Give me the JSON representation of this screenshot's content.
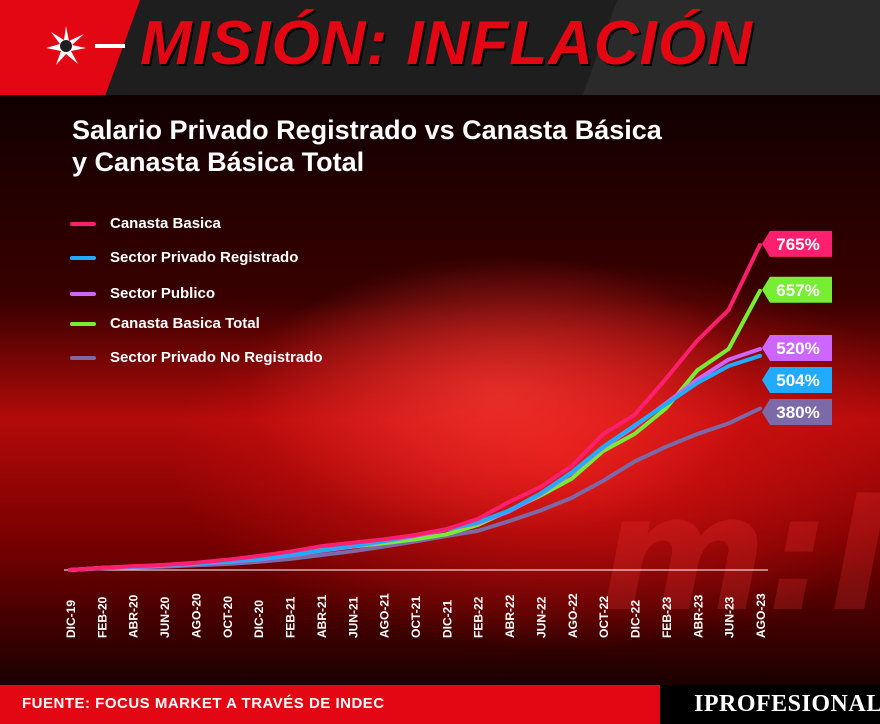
{
  "header": {
    "title": "MISIÓN: INFLACIÓN"
  },
  "chart_data": {
    "type": "line",
    "title": "Salario Privado Registrado vs Canasta Básica y Canasta Básica Total",
    "categories": [
      "DIC-19",
      "FEB-20",
      "ABR-20",
      "JUN-20",
      "AGO-20",
      "OCT-20",
      "DIC-20",
      "FEB-21",
      "ABR-21",
      "JUN-21",
      "AGO-21",
      "OCT-21",
      "DIC-21",
      "FEB-22",
      "ABR-22",
      "JUN-22",
      "AGO-22",
      "OCT-22",
      "DIC-22",
      "FEB-23",
      "ABR-23",
      "JUN-23",
      "AGO-23"
    ],
    "ylim": [
      0,
      800
    ],
    "grid": false,
    "legend_position": "top-left",
    "series": [
      {
        "name": "Canasta Basica",
        "color": "#ff1f6e",
        "end_label": "765%",
        "values": [
          0,
          5,
          9,
          12,
          17,
          24,
          33,
          43,
          56,
          64,
          72,
          82,
          96,
          120,
          160,
          195,
          245,
          320,
          365,
          450,
          540,
          612,
          765
        ]
      },
      {
        "name": "Sector Privado Registrado",
        "color": "#22aaff",
        "end_label": "504%",
        "values": [
          0,
          5,
          8,
          11,
          15,
          20,
          26,
          35,
          46,
          56,
          68,
          82,
          96,
          112,
          140,
          180,
          230,
          290,
          340,
          390,
          440,
          480,
          504
        ]
      },
      {
        "name": "Sector Publico",
        "color": "#cc66ff",
        "end_label": "520%",
        "values": [
          0,
          4,
          7,
          10,
          14,
          19,
          25,
          34,
          45,
          55,
          67,
          80,
          95,
          110,
          138,
          178,
          228,
          288,
          338,
          392,
          448,
          495,
          520
        ]
      },
      {
        "name": "Canasta Basica Total",
        "color": "#77ee33",
        "end_label": "657%",
        "values": [
          0,
          5,
          8,
          11,
          15,
          20,
          27,
          37,
          47,
          55,
          63,
          72,
          84,
          106,
          140,
          175,
          215,
          280,
          320,
          380,
          470,
          520,
          657
        ]
      },
      {
        "name": "Sector Privado No Registrado",
        "color": "#7c6aa8",
        "end_label": "380%",
        "values": [
          0,
          4,
          6,
          8,
          11,
          14,
          19,
          26,
          35,
          44,
          55,
          67,
          80,
          92,
          115,
          140,
          170,
          210,
          255,
          290,
          320,
          345,
          380
        ]
      }
    ]
  },
  "footer": {
    "source": "FUENTE: FOCUS MARKET A TRAVÉS DE INDEC",
    "brand": "IPROFESIONAL"
  },
  "watermark": "m:I"
}
